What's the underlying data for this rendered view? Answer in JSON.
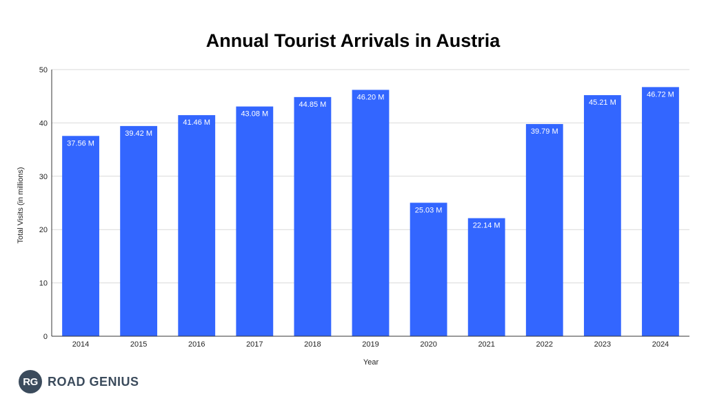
{
  "chart_data": {
    "type": "bar",
    "title": "Annual Tourist Arrivals in Austria",
    "xlabel": "Year",
    "ylabel": "Total Visits (in millions)",
    "categories": [
      "2014",
      "2015",
      "2016",
      "2017",
      "2018",
      "2019",
      "2020",
      "2021",
      "2022",
      "2023",
      "2024"
    ],
    "values": [
      37.56,
      39.42,
      41.46,
      43.08,
      44.85,
      46.2,
      25.03,
      22.14,
      39.79,
      45.21,
      46.72
    ],
    "data_labels": [
      "37.56 M",
      "39.42 M",
      "41.46 M",
      "43.08 M",
      "44.85 M",
      "46.20 M",
      "25.03 M",
      "22.14 M",
      "39.79 M",
      "45.21 M",
      "46.72 M"
    ],
    "ylim": [
      0,
      50
    ],
    "yticks": [
      "0",
      "10",
      "20",
      "30",
      "40",
      "50"
    ],
    "grid": true,
    "bar_color": "#3366ff"
  },
  "brand": {
    "mark": "RG",
    "name": "ROAD GENIUS"
  }
}
